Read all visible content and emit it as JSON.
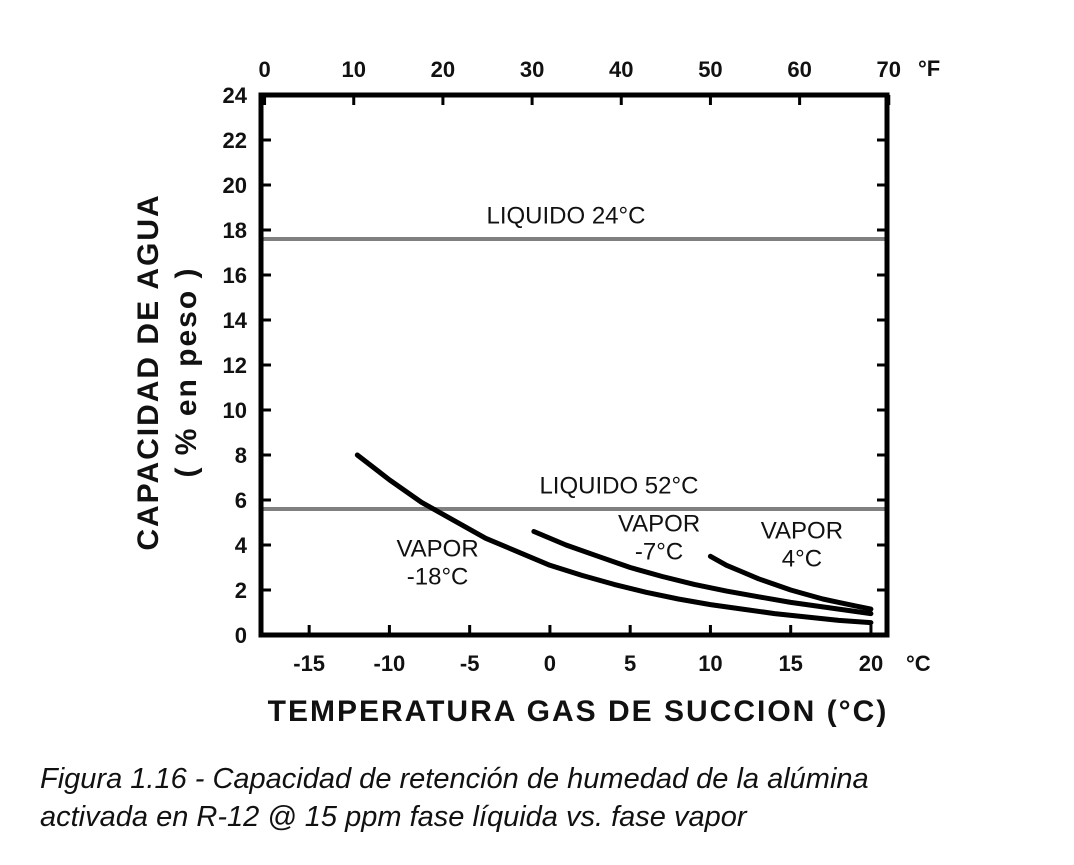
{
  "chart_data": {
    "type": "line",
    "ylabel": "CAPACIDAD DE AGUA",
    "ylabel_sub": "( % en peso )",
    "xlabel": "TEMPERATURA GAS DE SUCCION (°C)",
    "xlim": [
      -18,
      21
    ],
    "ylim": [
      0,
      24
    ],
    "x_ticks": [
      -15,
      -10,
      -5,
      0,
      5,
      10,
      15,
      20
    ],
    "x_tick_labels": [
      "-15",
      "-10",
      "-5",
      "0",
      "5",
      "10",
      "15",
      "20"
    ],
    "x_unit": "°C",
    "y_ticks": [
      0,
      2,
      4,
      6,
      8,
      10,
      12,
      14,
      16,
      18,
      20,
      22,
      24
    ],
    "y_tick_labels": [
      "0",
      "2",
      "4",
      "6",
      "8",
      "10",
      "12",
      "14",
      "16",
      "18",
      "20",
      "22",
      "24"
    ],
    "x2_ticks_f": [
      0,
      10,
      20,
      30,
      40,
      50,
      60,
      70
    ],
    "x2_tick_labels": [
      "0",
      "10",
      "20",
      "30",
      "40",
      "50",
      "60",
      "70"
    ],
    "x2_unit": "°F",
    "grid": false,
    "series": [
      {
        "name": "LIQUIDO  24°C",
        "kind": "hline",
        "y": 17.6,
        "color": "#808080",
        "label_lines": [
          "LIQUIDO  24°C"
        ],
        "label_at": [
          1,
          18.3
        ]
      },
      {
        "name": "LIQUIDO  52°C",
        "kind": "hline",
        "y": 5.6,
        "color": "#808080",
        "label_lines": [
          "LIQUIDO  52°C"
        ],
        "label_at": [
          4.3,
          6.3
        ]
      },
      {
        "name": "VAPOR -18°C",
        "kind": "curve",
        "color": "#000000",
        "x": [
          -12,
          -10,
          -8,
          -6,
          -4,
          -2,
          0,
          2,
          4,
          6,
          8,
          10,
          12,
          14,
          16,
          18,
          20
        ],
        "y": [
          8.0,
          6.9,
          5.9,
          5.1,
          4.3,
          3.7,
          3.1,
          2.65,
          2.25,
          1.9,
          1.6,
          1.35,
          1.15,
          0.95,
          0.8,
          0.65,
          0.55
        ],
        "label_lines": [
          "VAPOR",
          "-18°C"
        ],
        "label_at": [
          -7,
          3.5
        ]
      },
      {
        "name": "VAPOR -7°C",
        "kind": "curve",
        "color": "#000000",
        "x": [
          -1,
          1,
          3,
          5,
          7,
          9,
          11,
          13,
          15,
          17,
          19,
          20
        ],
        "y": [
          4.6,
          4.0,
          3.5,
          3.0,
          2.6,
          2.25,
          1.95,
          1.7,
          1.45,
          1.25,
          1.05,
          0.95
        ],
        "label_lines": [
          "VAPOR",
          "-7°C"
        ],
        "label_at": [
          6.8,
          4.6
        ]
      },
      {
        "name": "VAPOR 4°C",
        "kind": "curve",
        "color": "#000000",
        "x": [
          10,
          11,
          12,
          13,
          14,
          15,
          16,
          17,
          18,
          19,
          20
        ],
        "y": [
          3.5,
          3.1,
          2.8,
          2.5,
          2.25,
          2.0,
          1.8,
          1.6,
          1.45,
          1.3,
          1.15
        ],
        "label_lines": [
          "VAPOR",
          "4°C"
        ],
        "label_at": [
          15.7,
          4.3
        ]
      }
    ]
  },
  "caption": {
    "line1": "Figura 1.16 - Capacidad de retención de humedad de la alúmina",
    "line2": "activada en R-12 @ 15 ppm fase líquida vs. fase vapor"
  }
}
